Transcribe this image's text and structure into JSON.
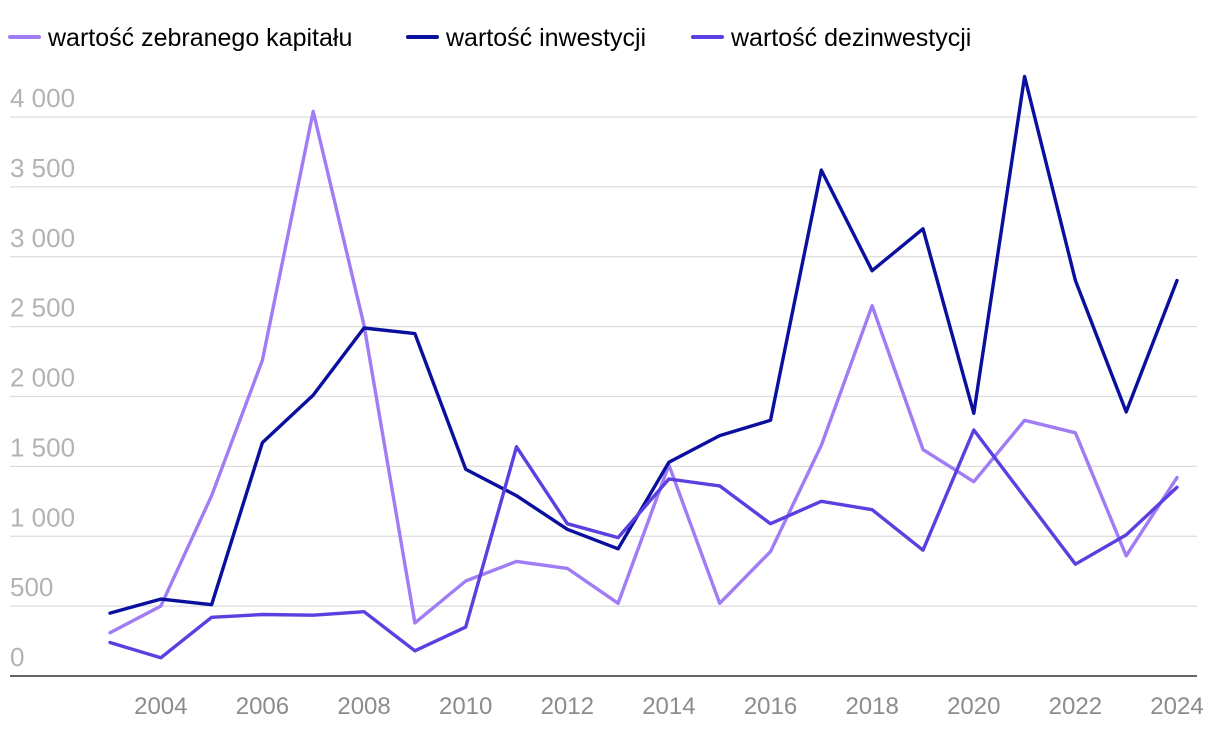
{
  "chart_data": {
    "type": "line",
    "title": "",
    "xlabel": "",
    "ylabel": "",
    "x": [
      2003,
      2004,
      2005,
      2006,
      2007,
      2008,
      2009,
      2010,
      2011,
      2012,
      2013,
      2014,
      2015,
      2016,
      2017,
      2018,
      2019,
      2020,
      2021,
      2022,
      2023,
      2024
    ],
    "x_ticks": [
      "2004",
      "2006",
      "2008",
      "2010",
      "2012",
      "2014",
      "2016",
      "2018",
      "2020",
      "2022",
      "2024"
    ],
    "y_ticks": [
      "0",
      "500",
      "1 000",
      "1 500",
      "2 000",
      "2 500",
      "3 000",
      "3 500",
      "4 000"
    ],
    "ylim": [
      0,
      4000
    ],
    "grid": "horizontal",
    "legend_position": "top-left",
    "series": [
      {
        "name": "wartość zebranego kapitału",
        "color": "#a07cf5",
        "values": [
          310,
          500,
          1290,
          2260,
          4040,
          2510,
          380,
          680,
          820,
          770,
          520,
          1510,
          520,
          890,
          1650,
          2650,
          1620,
          1390,
          1830,
          1740,
          860,
          1420
        ]
      },
      {
        "name": "wartość inwestycji",
        "color": "#0a0f9e",
        "values": [
          450,
          550,
          510,
          1670,
          2010,
          2490,
          2450,
          1480,
          1290,
          1050,
          910,
          1530,
          1720,
          1830,
          3620,
          2900,
          3200,
          1880,
          4290,
          2830,
          1890,
          2830
        ]
      },
      {
        "name": "wartość dezinwestycji",
        "color": "#5b3fe0",
        "values": [
          240,
          130,
          420,
          440,
          435,
          460,
          180,
          350,
          1640,
          1090,
          990,
          1410,
          1360,
          1090,
          1250,
          1190,
          900,
          1760,
          1280,
          800,
          1010,
          1350
        ]
      }
    ]
  }
}
